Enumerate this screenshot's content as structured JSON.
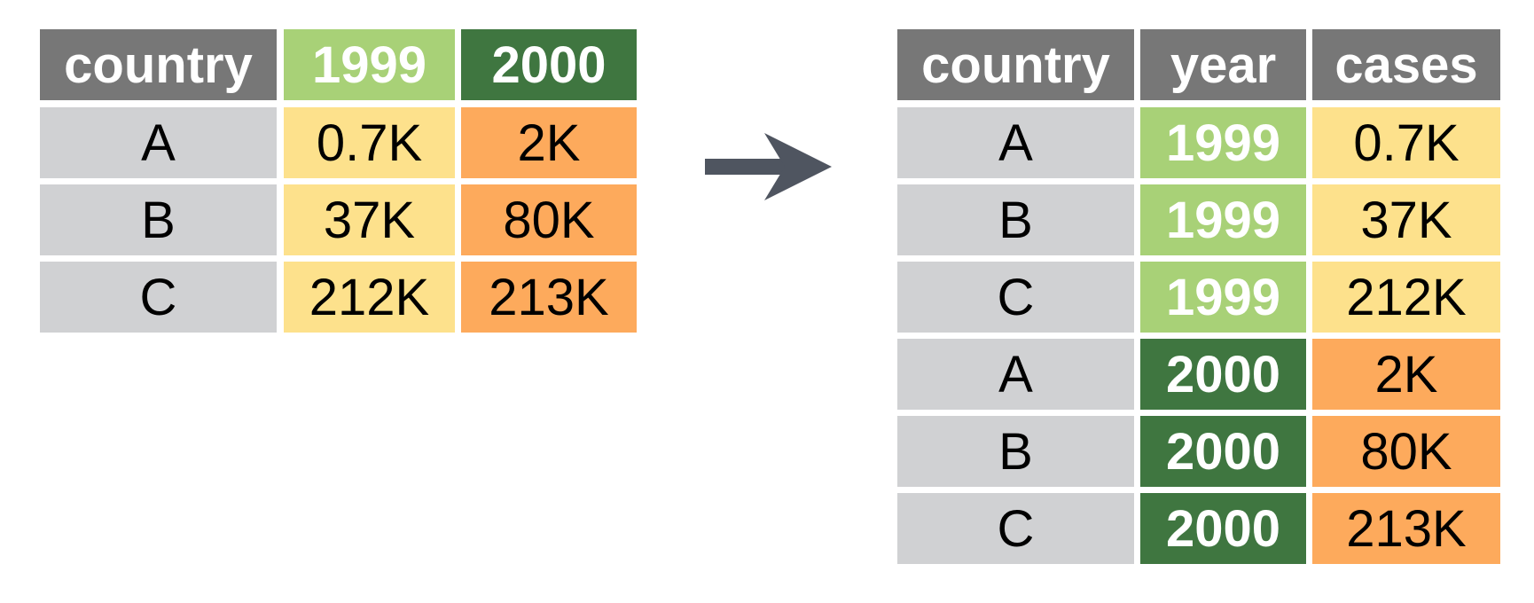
{
  "colors": {
    "header_gray": "#777777",
    "country_gray": "#d0d1d3",
    "year_1999": "#a8d177",
    "year_2000": "#3f7640",
    "cases_1999": "#fde18c",
    "cases_2000": "#fdaa5c",
    "arrow": "#4f5560"
  },
  "wide_table": {
    "headers": [
      "country",
      "1999",
      "2000"
    ],
    "rows": [
      {
        "country": "A",
        "y1999": "0.7K",
        "y2000": "2K"
      },
      {
        "country": "B",
        "y1999": "37K",
        "y2000": "80K"
      },
      {
        "country": "C",
        "y1999": "212K",
        "y2000": "213K"
      }
    ]
  },
  "arrow": {
    "icon": "arrow-right-icon"
  },
  "long_table": {
    "headers": [
      "country",
      "year",
      "cases"
    ],
    "rows": [
      {
        "country": "A",
        "year": "1999",
        "cases": "0.7K"
      },
      {
        "country": "B",
        "year": "1999",
        "cases": "37K"
      },
      {
        "country": "C",
        "year": "1999",
        "cases": "212K"
      },
      {
        "country": "A",
        "year": "2000",
        "cases": "2K"
      },
      {
        "country": "B",
        "year": "2000",
        "cases": "80K"
      },
      {
        "country": "C",
        "year": "2000",
        "cases": "213K"
      }
    ]
  }
}
